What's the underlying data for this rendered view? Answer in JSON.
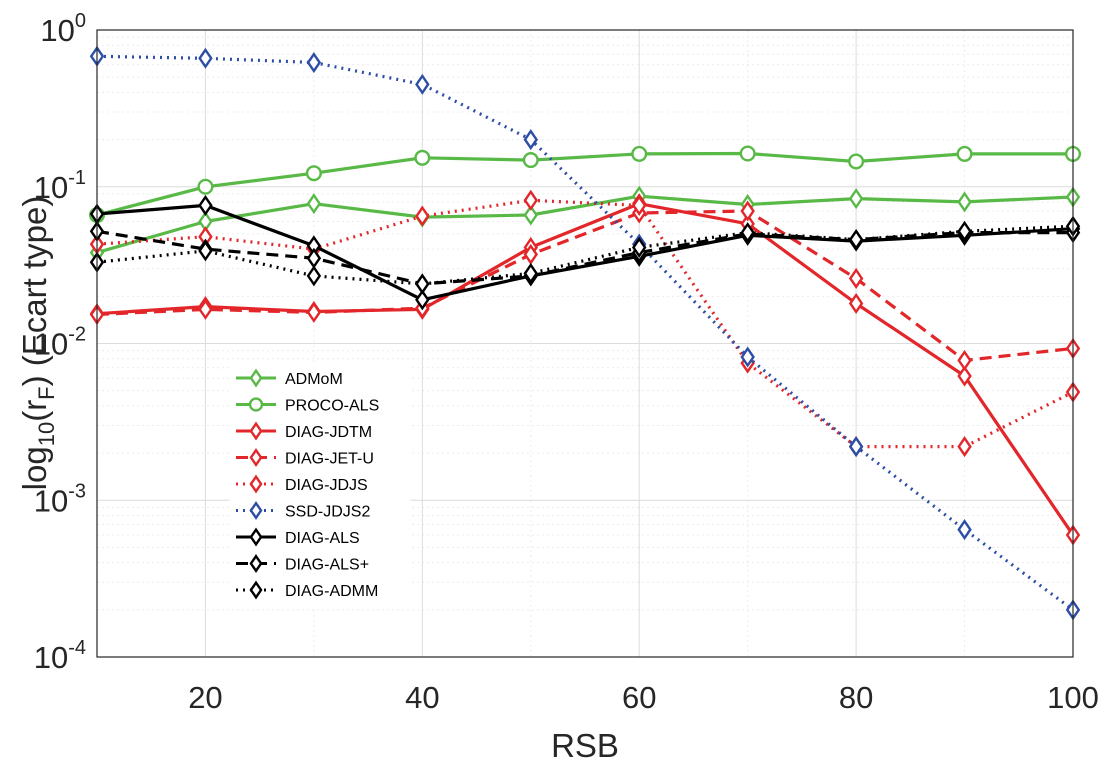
{
  "chart_data": {
    "type": "line",
    "title": "",
    "xlabel": "RSB",
    "ylabel_parts": [
      "log",
      "10",
      "(r",
      "F",
      ") (Ecart type)"
    ],
    "x_scale": "linear",
    "y_scale": "log",
    "xlim": [
      10,
      100
    ],
    "ylim": [
      0.0001,
      1
    ],
    "x_ticks": [
      20,
      40,
      60,
      80,
      100
    ],
    "y_ticks": [
      {
        "value": 1,
        "base": "10",
        "exp": "0"
      },
      {
        "value": 0.1,
        "base": "10",
        "exp": "-1"
      },
      {
        "value": 0.01,
        "base": "10",
        "exp": "-2"
      },
      {
        "value": 0.001,
        "base": "10",
        "exp": "-3"
      },
      {
        "value": 0.0001,
        "base": "10",
        "exp": "-4"
      }
    ],
    "grid": true,
    "legend_position": "left",
    "x": [
      10,
      20,
      30,
      40,
      50,
      60,
      70,
      80,
      90,
      100
    ],
    "series": [
      {
        "name": "ADMoM",
        "color": "#58b947",
        "dash": "solid",
        "marker": "diamond",
        "values": [
          0.038,
          0.06,
          0.078,
          0.064,
          0.066,
          0.087,
          0.077,
          0.084,
          0.08,
          0.086
        ]
      },
      {
        "name": "PROCO-ALS",
        "color": "#58b947",
        "dash": "solid",
        "marker": "circle",
        "values": [
          0.066,
          0.1,
          0.122,
          0.153,
          0.148,
          0.162,
          0.163,
          0.145,
          0.162,
          0.162
        ]
      },
      {
        "name": "DIAG-JDTM",
        "color": "#e3262a",
        "dash": "solid",
        "marker": "diamond",
        "values": [
          0.0155,
          0.0172,
          0.016,
          0.0165,
          0.041,
          0.078,
          0.058,
          0.018,
          0.0062,
          0.0006
        ]
      },
      {
        "name": "DIAG-JET-U",
        "color": "#e3262a",
        "dash": "dashed",
        "marker": "diamond",
        "values": [
          0.0153,
          0.0165,
          0.0158,
          0.0168,
          0.037,
          0.068,
          0.07,
          0.026,
          0.0078,
          0.0093
        ]
      },
      {
        "name": "DIAG-JDJS",
        "color": "#e3262a",
        "dash": "dotted",
        "marker": "diamond",
        "values": [
          0.043,
          0.048,
          0.04,
          0.065,
          0.082,
          0.076,
          0.0075,
          0.0022,
          0.0022,
          0.0049
        ]
      },
      {
        "name": "SSD-JDJS2",
        "color": "#2c4ea6",
        "dash": "dotted",
        "marker": "diamond",
        "values": [
          0.68,
          0.66,
          0.62,
          0.45,
          0.2,
          0.043,
          0.0082,
          0.0022,
          0.00065,
          0.0002
        ]
      },
      {
        "name": "DIAG-ALS",
        "color": "#000000",
        "dash": "solid",
        "marker": "diamond",
        "values": [
          0.067,
          0.076,
          0.042,
          0.019,
          0.027,
          0.036,
          0.049,
          0.045,
          0.049,
          0.054
        ]
      },
      {
        "name": "DIAG-ALS+",
        "color": "#000000",
        "dash": "dashed",
        "marker": "diamond",
        "values": [
          0.052,
          0.04,
          0.035,
          0.024,
          0.027,
          0.038,
          0.05,
          0.046,
          0.051,
          0.051
        ]
      },
      {
        "name": "DIAG-ADMM",
        "color": "#000000",
        "dash": "dotted",
        "marker": "diamond",
        "values": [
          0.033,
          0.039,
          0.027,
          0.024,
          0.028,
          0.041,
          0.051,
          0.046,
          0.052,
          0.056
        ]
      }
    ]
  }
}
